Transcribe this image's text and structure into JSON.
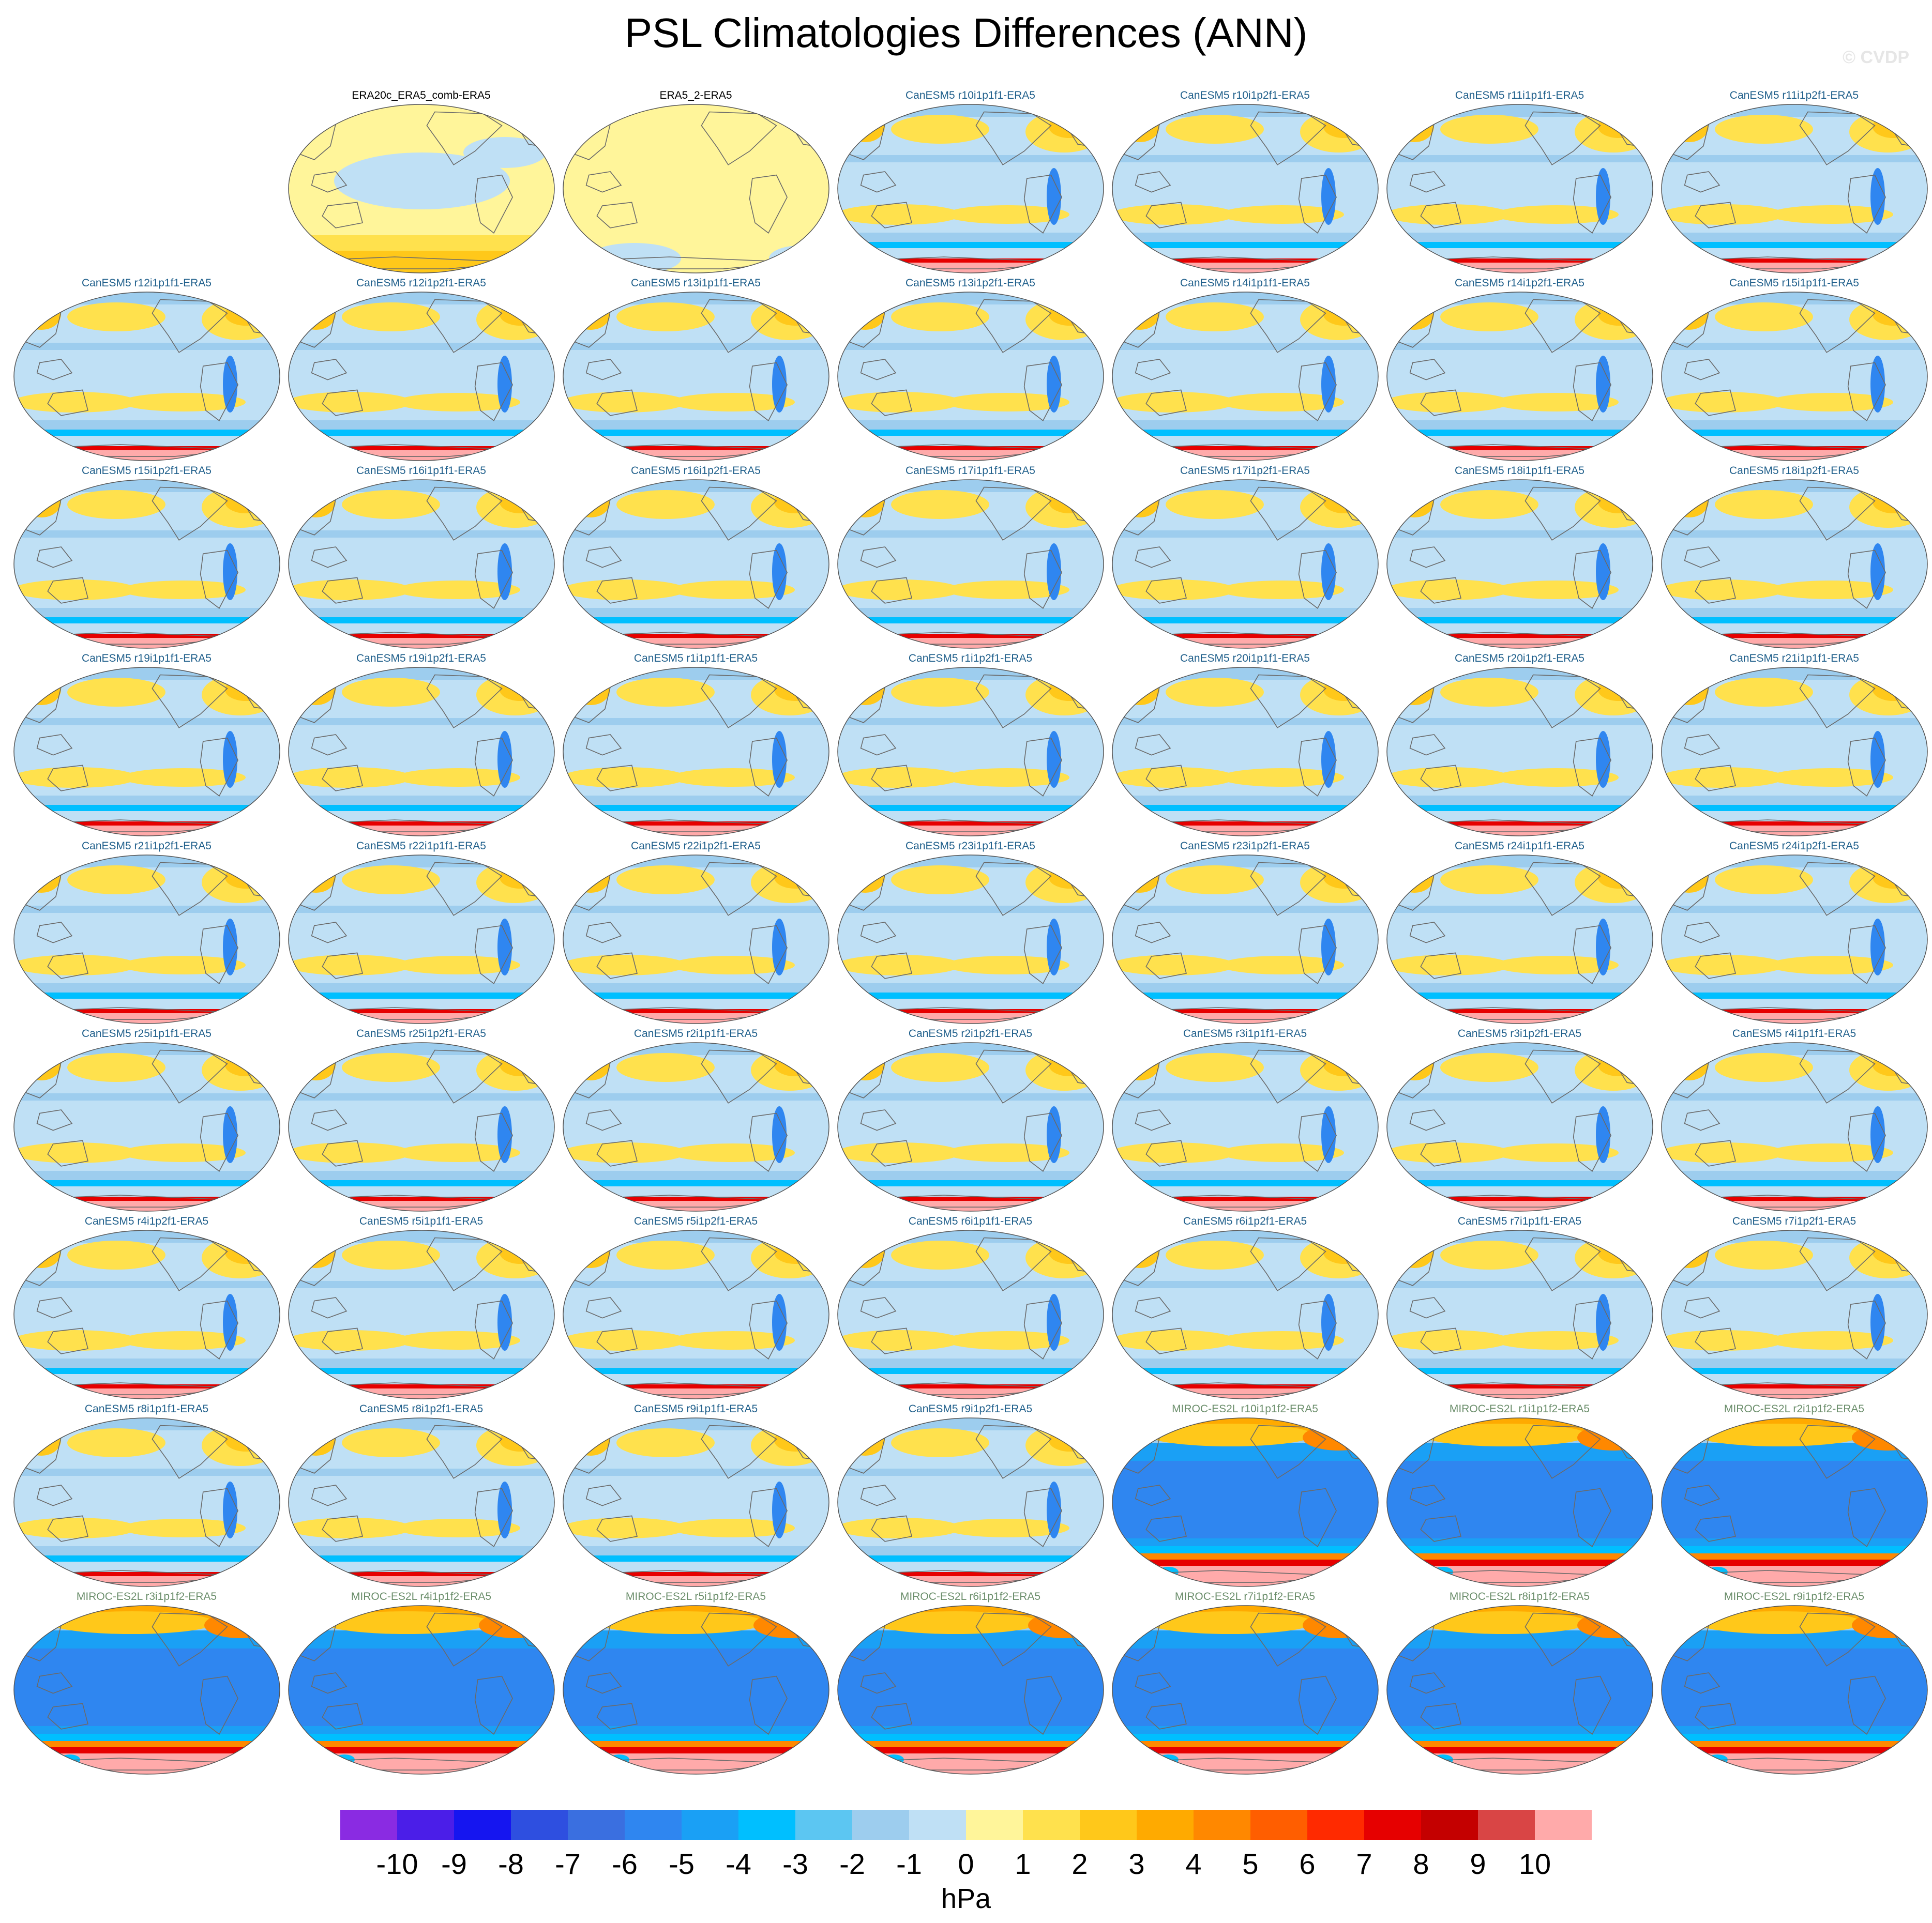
{
  "title": "PSL Climatologies Differences (ANN)",
  "copyright": "© CVDP",
  "panels": [
    {
      "label": "ERA20c_ERA5_comb-ERA5",
      "kind": "obs1"
    },
    {
      "label": "ERA5_2-ERA5",
      "kind": "obs2"
    },
    {
      "label": "CanESM5 r10i1p1f1-ERA5",
      "kind": "canesm"
    },
    {
      "label": "CanESM5 r10i1p2f1-ERA5",
      "kind": "canesm"
    },
    {
      "label": "CanESM5 r11i1p1f1-ERA5",
      "kind": "canesm"
    },
    {
      "label": "CanESM5 r11i1p2f1-ERA5",
      "kind": "canesm"
    },
    {
      "label": "CanESM5 r12i1p1f1-ERA5",
      "kind": "canesm"
    },
    {
      "label": "CanESM5 r12i1p2f1-ERA5",
      "kind": "canesm"
    },
    {
      "label": "CanESM5 r13i1p1f1-ERA5",
      "kind": "canesm"
    },
    {
      "label": "CanESM5 r13i1p2f1-ERA5",
      "kind": "canesm"
    },
    {
      "label": "CanESM5 r14i1p1f1-ERA5",
      "kind": "canesm"
    },
    {
      "label": "CanESM5 r14i1p2f1-ERA5",
      "kind": "canesm"
    },
    {
      "label": "CanESM5 r15i1p1f1-ERA5",
      "kind": "canesm"
    },
    {
      "label": "CanESM5 r15i1p2f1-ERA5",
      "kind": "canesm"
    },
    {
      "label": "CanESM5 r16i1p1f1-ERA5",
      "kind": "canesm"
    },
    {
      "label": "CanESM5 r16i1p2f1-ERA5",
      "kind": "canesm"
    },
    {
      "label": "CanESM5 r17i1p1f1-ERA5",
      "kind": "canesm"
    },
    {
      "label": "CanESM5 r17i1p2f1-ERA5",
      "kind": "canesm"
    },
    {
      "label": "CanESM5 r18i1p1f1-ERA5",
      "kind": "canesm"
    },
    {
      "label": "CanESM5 r18i1p2f1-ERA5",
      "kind": "canesm"
    },
    {
      "label": "CanESM5 r19i1p1f1-ERA5",
      "kind": "canesm"
    },
    {
      "label": "CanESM5 r19i1p2f1-ERA5",
      "kind": "canesm"
    },
    {
      "label": "CanESM5 r1i1p1f1-ERA5",
      "kind": "canesm"
    },
    {
      "label": "CanESM5 r1i1p2f1-ERA5",
      "kind": "canesm"
    },
    {
      "label": "CanESM5 r20i1p1f1-ERA5",
      "kind": "canesm"
    },
    {
      "label": "CanESM5 r20i1p2f1-ERA5",
      "kind": "canesm"
    },
    {
      "label": "CanESM5 r21i1p1f1-ERA5",
      "kind": "canesm"
    },
    {
      "label": "CanESM5 r21i1p2f1-ERA5",
      "kind": "canesm"
    },
    {
      "label": "CanESM5 r22i1p1f1-ERA5",
      "kind": "canesm"
    },
    {
      "label": "CanESM5 r22i1p2f1-ERA5",
      "kind": "canesm"
    },
    {
      "label": "CanESM5 r23i1p1f1-ERA5",
      "kind": "canesm"
    },
    {
      "label": "CanESM5 r23i1p2f1-ERA5",
      "kind": "canesm"
    },
    {
      "label": "CanESM5 r24i1p1f1-ERA5",
      "kind": "canesm"
    },
    {
      "label": "CanESM5 r24i1p2f1-ERA5",
      "kind": "canesm"
    },
    {
      "label": "CanESM5 r25i1p1f1-ERA5",
      "kind": "canesm"
    },
    {
      "label": "CanESM5 r25i1p2f1-ERA5",
      "kind": "canesm"
    },
    {
      "label": "CanESM5 r2i1p1f1-ERA5",
      "kind": "canesm"
    },
    {
      "label": "CanESM5 r2i1p2f1-ERA5",
      "kind": "canesm"
    },
    {
      "label": "CanESM5 r3i1p1f1-ERA5",
      "kind": "canesm"
    },
    {
      "label": "CanESM5 r3i1p2f1-ERA5",
      "kind": "canesm"
    },
    {
      "label": "CanESM5 r4i1p1f1-ERA5",
      "kind": "canesm"
    },
    {
      "label": "CanESM5 r4i1p2f1-ERA5",
      "kind": "canesm"
    },
    {
      "label": "CanESM5 r5i1p1f1-ERA5",
      "kind": "canesm"
    },
    {
      "label": "CanESM5 r5i1p2f1-ERA5",
      "kind": "canesm"
    },
    {
      "label": "CanESM5 r6i1p1f1-ERA5",
      "kind": "canesm"
    },
    {
      "label": "CanESM5 r6i1p2f1-ERA5",
      "kind": "canesm"
    },
    {
      "label": "CanESM5 r7i1p1f1-ERA5",
      "kind": "canesm"
    },
    {
      "label": "CanESM5 r7i1p2f1-ERA5",
      "kind": "canesm"
    },
    {
      "label": "CanESM5 r8i1p1f1-ERA5",
      "kind": "canesm"
    },
    {
      "label": "CanESM5 r8i1p2f1-ERA5",
      "kind": "canesm"
    },
    {
      "label": "CanESM5 r9i1p1f1-ERA5",
      "kind": "canesm"
    },
    {
      "label": "CanESM5 r9i1p2f1-ERA5",
      "kind": "canesm"
    },
    {
      "label": "MIROC-ES2L r10i1p1f2-ERA5",
      "kind": "miroc"
    },
    {
      "label": "MIROC-ES2L r1i1p1f2-ERA5",
      "kind": "miroc"
    },
    {
      "label": "MIROC-ES2L r2i1p1f2-ERA5",
      "kind": "miroc"
    },
    {
      "label": "MIROC-ES2L r3i1p1f2-ERA5",
      "kind": "miroc"
    },
    {
      "label": "MIROC-ES2L r4i1p1f2-ERA5",
      "kind": "miroc"
    },
    {
      "label": "MIROC-ES2L r5i1p1f2-ERA5",
      "kind": "miroc"
    },
    {
      "label": "MIROC-ES2L r6i1p1f2-ERA5",
      "kind": "miroc"
    },
    {
      "label": "MIROC-ES2L r7i1p1f2-ERA5",
      "kind": "miroc"
    },
    {
      "label": "MIROC-ES2L r8i1p1f2-ERA5",
      "kind": "miroc"
    },
    {
      "label": "MIROC-ES2L r9i1p1f2-ERA5",
      "kind": "miroc"
    }
  ],
  "label_colors": {
    "obs1": "#000000",
    "obs2": "#000000",
    "canesm": "#1f5f8b",
    "miroc": "#6b8e6b"
  },
  "colorbar": {
    "ticks": [
      "-10",
      "-9",
      "-8",
      "-7",
      "-6",
      "-5",
      "-4",
      "-3",
      "-2",
      "-1",
      "0",
      "1",
      "2",
      "3",
      "4",
      "5",
      "6",
      "7",
      "8",
      "9",
      "10"
    ],
    "colors": [
      "#8a2be2",
      "#4b1ee8",
      "#1515f0",
      "#2e4fe0",
      "#3a6fe0",
      "#2f86f0",
      "#1aa0f5",
      "#00bfff",
      "#5cc6f2",
      "#9dcdee",
      "#bfe0f5",
      "#fff59a",
      "#ffe14d",
      "#ffc81a",
      "#ffaa00",
      "#ff8800",
      "#ff5e00",
      "#ff2a00",
      "#e60000",
      "#c40000",
      "#d94545",
      "#ffaaaa"
    ],
    "unit": "hPa"
  }
}
